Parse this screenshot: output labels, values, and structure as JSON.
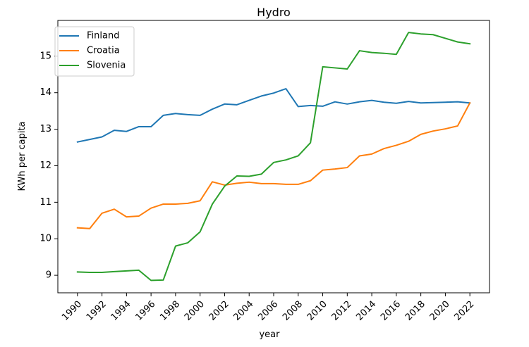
{
  "chart_data": {
    "type": "line",
    "title": "Hydro",
    "xlabel": "year",
    "ylabel": "KWh per capita",
    "xlim": [
      1988.4,
      2023.6
    ],
    "ylim": [
      8.52,
      15.98
    ],
    "xticks": [
      1990,
      1992,
      1994,
      1996,
      1998,
      2000,
      2002,
      2004,
      2006,
      2008,
      2010,
      2012,
      2014,
      2016,
      2018,
      2020,
      2022
    ],
    "xtick_labels": [
      "1990",
      "1992",
      "1994",
      "1996",
      "1998",
      "2000",
      "2002",
      "2004",
      "2006",
      "2008",
      "2010",
      "2012",
      "2014",
      "2016",
      "2018",
      "2020",
      "2022"
    ],
    "yticks": [
      9,
      10,
      11,
      12,
      13,
      14,
      15
    ],
    "ytick_labels": [
      "9",
      "10",
      "11",
      "12",
      "13",
      "14",
      "15"
    ],
    "grid": false,
    "legend_position": "top-left",
    "x": [
      1990,
      1991,
      1992,
      1993,
      1994,
      1995,
      1996,
      1997,
      1998,
      1999,
      2000,
      2001,
      2002,
      2003,
      2004,
      2005,
      2006,
      2007,
      2008,
      2009,
      2010,
      2011,
      2012,
      2013,
      2014,
      2015,
      2016,
      2017,
      2018,
      2019,
      2020,
      2021,
      2022
    ],
    "series": [
      {
        "name": "Finland",
        "color": "#1f77b4",
        "values": [
          12.65,
          12.72,
          12.79,
          12.97,
          12.94,
          13.07,
          13.07,
          13.38,
          13.43,
          13.4,
          13.38,
          13.55,
          13.69,
          13.67,
          13.79,
          13.91,
          13.99,
          14.11,
          13.62,
          13.65,
          13.63,
          13.75,
          13.69,
          13.75,
          13.79,
          13.74,
          13.71,
          13.76,
          13.72,
          13.73,
          13.74,
          13.75,
          13.72
        ]
      },
      {
        "name": "Croatia",
        "color": "#ff7f0e",
        "values": [
          10.3,
          10.28,
          10.7,
          10.81,
          10.6,
          10.62,
          10.84,
          10.95,
          10.95,
          10.97,
          11.04,
          11.56,
          11.47,
          11.52,
          11.55,
          11.51,
          11.51,
          11.49,
          11.49,
          11.59,
          11.88,
          11.91,
          11.95,
          12.27,
          12.32,
          12.47,
          12.56,
          12.67,
          12.86,
          12.95,
          13.01,
          13.09,
          13.72
        ]
      },
      {
        "name": "Slovenia",
        "color": "#2ca02c",
        "values": [
          9.09,
          9.08,
          9.08,
          9.1,
          9.12,
          9.14,
          8.86,
          8.87,
          9.8,
          9.89,
          10.19,
          10.95,
          11.44,
          11.72,
          11.71,
          11.77,
          12.09,
          12.16,
          12.27,
          12.63,
          14.71,
          14.68,
          14.65,
          15.15,
          15.1,
          15.08,
          15.05,
          15.65,
          15.61,
          15.59,
          15.49,
          15.39,
          15.34
        ]
      }
    ]
  }
}
